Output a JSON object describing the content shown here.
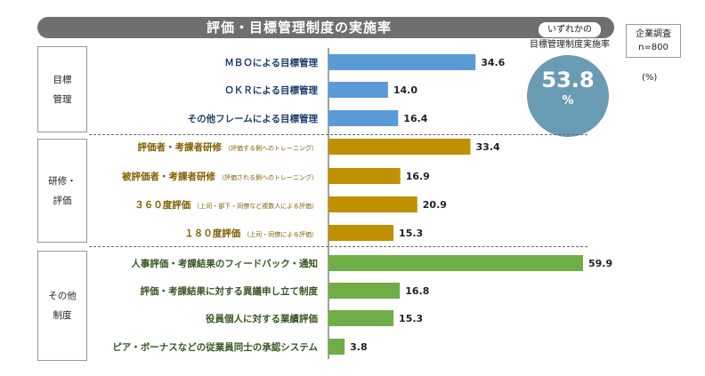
{
  "title": "評価・目標管理制度の実施率",
  "survey": {
    "line1": "企業調査",
    "line2": "n=800"
  },
  "unit": "(%)",
  "highlight": {
    "label_line1": "いずれかの",
    "label_line2": "目標管理制度実施率",
    "value": "53.8",
    "unit": "%",
    "color": "#6a9bb4"
  },
  "groups": [
    {
      "label_line1": "目標",
      "label_line2": "管理"
    },
    {
      "label_line1": "研修・",
      "label_line2": "評価"
    },
    {
      "label_line1": "その他",
      "label_line2": "制度"
    }
  ],
  "chart_data": {
    "type": "bar",
    "orientation": "horizontal",
    "title": "評価・目標管理制度の実施率",
    "categories": [
      "ＭＢＯによる目標管理",
      "ＯＫＲによる目標管理",
      "その他フレームによる目標管理",
      "評価者・考課者研修",
      "被評価者・考課者研修",
      "３６０度評価",
      "１８０度評価",
      "人事評価・考課結果のフィードバック・通知",
      "評価・考課結果に対する異議申し立て制度",
      "役員個人に対する業績評価",
      "ピア・ボーナスなどの従業員同士の承認システム"
    ],
    "notes": [
      "",
      "",
      "",
      "（評価する側へのトレーニング）",
      "（評価される側へのトレーニング）",
      "（上司・部下・同僚など複数人による評価）",
      "（上司・同僚による評価）",
      "",
      "",
      "",
      ""
    ],
    "values": [
      34.6,
      14.0,
      16.4,
      33.4,
      16.9,
      20.9,
      15.3,
      59.9,
      16.8,
      15.3,
      3.8
    ],
    "value_labels": [
      "34.6",
      "14.0",
      "16.4",
      "33.4",
      "16.9",
      "20.9",
      "15.3",
      "59.9",
      "16.8",
      "15.3",
      "3.8"
    ],
    "group_index": [
      0,
      0,
      0,
      1,
      1,
      1,
      1,
      2,
      2,
      2,
      2
    ],
    "group_colors": [
      "#5b9bd5",
      "#bf9000",
      "#70ad47"
    ],
    "label_colors": [
      "#1f3f6e",
      "#7f5f00",
      "#375623"
    ],
    "value_color": "#222222",
    "xlim": [
      0,
      65
    ],
    "grid": false,
    "legend": "none"
  }
}
